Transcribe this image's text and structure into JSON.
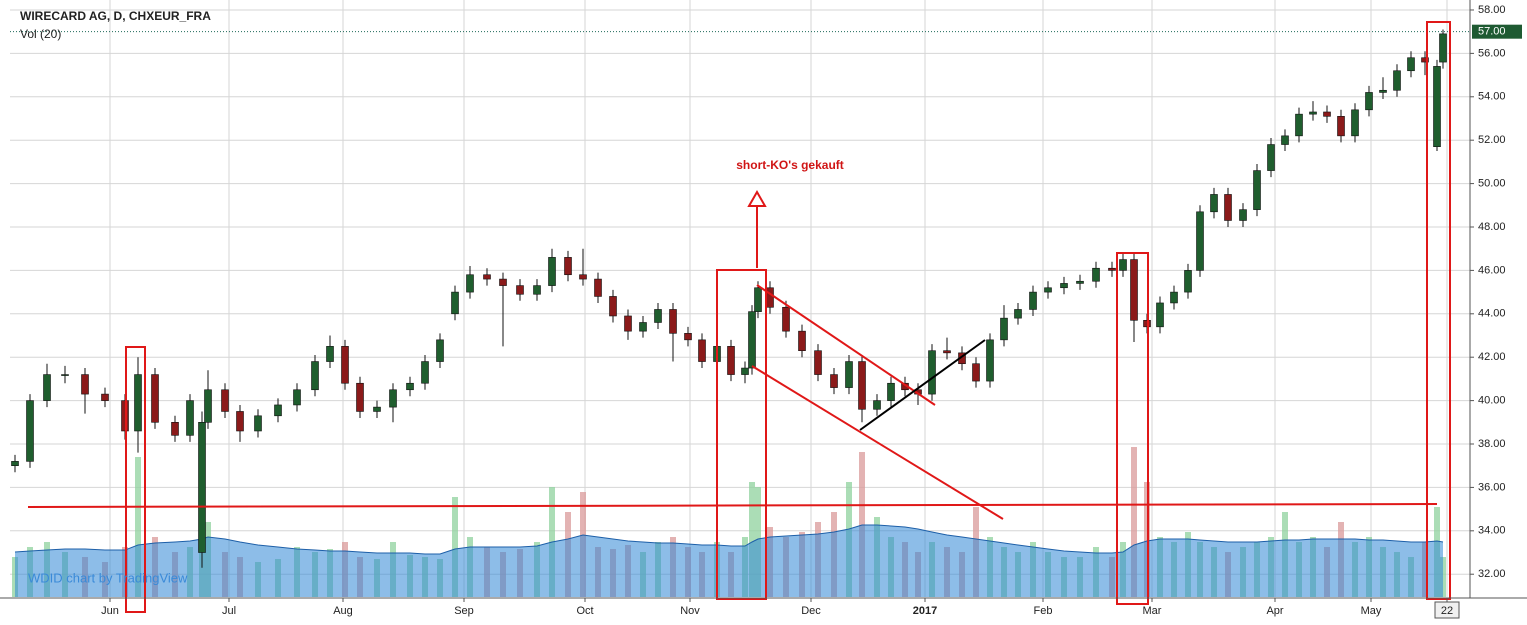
{
  "chart_data": {
    "type": "candlestick",
    "title": "WIRECARD AG, D, CHXEUR_FRA",
    "subtitle": "Vol (20)",
    "watermark": "WDID chart by TradingView",
    "annotation": "short-KO's gekauft",
    "up_color": "#1f5e2e",
    "down_color": "#8b1a1a",
    "volume_up_color": "#8fd19e",
    "volume_down_color": "#d99a9a",
    "vol_ma_color": "#2f86d6",
    "grid": true,
    "x": [
      0.5,
      2,
      3.7,
      5.5,
      7.5,
      9.5,
      11.5,
      12.8,
      14.5,
      16.5,
      18,
      19.2,
      19.8,
      21.5,
      23,
      24.8,
      26.8,
      28.7,
      30.5,
      32,
      33.5,
      35,
      36.7,
      38.3,
      40,
      41.5,
      43,
      44.5,
      46,
      47.7,
      49.3,
      51,
      52.7,
      54.2,
      55.8,
      57.3,
      58.8,
      60.3,
      61.8,
      63.3,
      64.8,
      66.3,
      67.8,
      69.2,
      70.7,
      72.1,
      73.5,
      74.2,
      74.8,
      76,
      77.6,
      79.2,
      80.8,
      82.4,
      83.9,
      85.2,
      86.7,
      88.1,
      89.5,
      90.8,
      92.2,
      93.7,
      95.2,
      96.6,
      98,
      99.4,
      100.8,
      102.3,
      103.8,
      105.4,
      107,
      108.6,
      110.2,
      111.3,
      112.4,
      113.7,
      115,
      116.4,
      117.8,
      119,
      120.4,
      121.8,
      123.3,
      124.7,
      126.1,
      127.5,
      128.9,
      130.3,
      131.7,
      133.1,
      134.5,
      135.9,
      137.3,
      138.7,
      140.1,
      141.5,
      142.7,
      143.3
    ],
    "open": [
      37.0,
      37.2,
      40.0,
      41.2,
      41.2,
      40.3,
      40.0,
      38.6,
      41.2,
      39.0,
      38.4,
      33.0,
      39.0,
      40.5,
      39.5,
      38.6,
      39.3,
      39.8,
      40.5,
      41.8,
      42.5,
      40.8,
      39.5,
      39.7,
      40.5,
      40.8,
      41.8,
      44.0,
      45.0,
      45.8,
      45.6,
      45.3,
      44.9,
      45.3,
      46.6,
      45.8,
      45.6,
      44.8,
      43.9,
      43.2,
      43.6,
      44.2,
      43.1,
      42.8,
      41.8,
      42.5,
      41.2,
      41.5,
      44.1,
      45.2,
      44.3,
      43.2,
      42.3,
      41.2,
      40.6,
      41.8,
      39.6,
      40.0,
      40.8,
      40.5,
      40.3,
      42.3,
      42.2,
      41.7,
      40.9,
      42.8,
      43.8,
      44.2,
      45.0,
      45.2,
      45.4,
      45.5,
      46.1,
      46.0,
      46.5,
      43.7,
      43.4,
      44.5,
      45.0,
      46.0,
      48.7,
      49.5,
      48.3,
      48.8,
      50.6,
      51.8,
      52.2,
      53.2,
      53.3,
      53.1,
      52.2,
      53.4,
      54.2,
      54.3,
      55.2,
      55.8,
      51.7,
      55.6
    ],
    "high": [
      37.5,
      40.3,
      41.7,
      41.6,
      41.5,
      40.6,
      40.3,
      42.0,
      41.5,
      39.3,
      40.3,
      39.5,
      41.4,
      40.8,
      39.8,
      39.6,
      40.1,
      40.8,
      42.1,
      43.0,
      42.8,
      41.1,
      40.0,
      40.8,
      41.1,
      42.1,
      43.1,
      45.3,
      46.2,
      46.1,
      45.9,
      45.6,
      45.6,
      47.0,
      46.9,
      47.0,
      45.9,
      45.1,
      44.2,
      43.9,
      44.5,
      44.5,
      43.4,
      43.1,
      42.8,
      42.8,
      41.8,
      44.4,
      45.5,
      45.5,
      44.6,
      43.5,
      42.6,
      41.5,
      42.1,
      42.1,
      40.3,
      41.1,
      41.1,
      40.8,
      42.6,
      42.9,
      42.5,
      42.0,
      43.1,
      44.4,
      44.5,
      45.3,
      45.5,
      45.7,
      45.8,
      46.4,
      46.4,
      46.8,
      46.8,
      44.0,
      44.8,
      45.3,
      46.3,
      49.0,
      49.8,
      49.8,
      49.1,
      50.9,
      52.1,
      52.5,
      53.5,
      53.8,
      53.6,
      53.4,
      53.7,
      54.5,
      54.9,
      55.5,
      56.1,
      56.1,
      55.7,
      57.1
    ],
    "low": [
      36.7,
      36.9,
      39.7,
      40.8,
      39.4,
      39.7,
      38.2,
      37.6,
      38.7,
      38.1,
      38.1,
      32.3,
      38.7,
      39.2,
      38.1,
      38.3,
      39.0,
      39.5,
      40.2,
      41.5,
      40.5,
      39.2,
      39.2,
      39.0,
      40.2,
      40.5,
      41.5,
      43.7,
      44.7,
      45.3,
      42.5,
      44.6,
      44.6,
      45.0,
      45.5,
      45.3,
      44.5,
      43.6,
      42.8,
      42.9,
      43.3,
      41.8,
      42.5,
      41.5,
      41.5,
      40.9,
      40.8,
      41.2,
      43.8,
      44.0,
      42.9,
      42.0,
      40.9,
      40.3,
      40.3,
      39.0,
      39.3,
      39.7,
      40.2,
      39.8,
      40.0,
      41.9,
      41.4,
      40.6,
      40.6,
      42.5,
      43.5,
      43.9,
      44.7,
      44.9,
      45.1,
      45.2,
      45.7,
      45.7,
      42.7,
      43.1,
      43.1,
      44.2,
      44.7,
      45.7,
      48.4,
      48.0,
      48.0,
      48.5,
      50.3,
      51.5,
      51.9,
      52.9,
      52.8,
      51.9,
      51.9,
      53.1,
      53.9,
      54.0,
      54.9,
      55.0,
      51.5,
      55.3
    ],
    "close": [
      37.2,
      40.0,
      41.2,
      41.2,
      40.3,
      40.0,
      38.6,
      41.2,
      39.0,
      38.4,
      40.0,
      39.0,
      40.5,
      39.5,
      38.6,
      39.3,
      39.8,
      40.5,
      41.8,
      42.5,
      40.8,
      39.5,
      39.7,
      40.5,
      40.8,
      41.8,
      42.8,
      45.0,
      45.8,
      45.6,
      45.3,
      44.9,
      45.3,
      46.6,
      45.8,
      45.6,
      44.8,
      43.9,
      43.2,
      43.6,
      44.2,
      43.1,
      42.8,
      41.8,
      42.5,
      41.2,
      41.5,
      44.1,
      45.2,
      44.3,
      43.2,
      42.3,
      41.2,
      40.6,
      41.8,
      39.6,
      40.0,
      40.8,
      40.5,
      40.3,
      42.3,
      42.2,
      41.7,
      40.9,
      42.8,
      43.8,
      44.2,
      45.0,
      45.2,
      45.4,
      45.5,
      46.1,
      46.0,
      46.5,
      43.7,
      43.4,
      44.5,
      45.0,
      46.0,
      48.7,
      49.5,
      48.3,
      48.8,
      50.6,
      51.8,
      52.2,
      53.2,
      53.3,
      53.1,
      52.2,
      53.4,
      54.2,
      54.3,
      55.2,
      55.8,
      55.6,
      55.4,
      56.9
    ],
    "volume": [
      40,
      50,
      55,
      45,
      40,
      35,
      50,
      140,
      60,
      45,
      50,
      95,
      75,
      45,
      40,
      35,
      38,
      50,
      45,
      48,
      55,
      40,
      38,
      55,
      42,
      40,
      38,
      100,
      60,
      50,
      45,
      48,
      55,
      110,
      85,
      105,
      50,
      48,
      52,
      45,
      55,
      60,
      50,
      45,
      55,
      45,
      60,
      115,
      110,
      70,
      60,
      65,
      75,
      85,
      115,
      145,
      80,
      60,
      55,
      45,
      55,
      50,
      45,
      90,
      60,
      50,
      45,
      55,
      45,
      40,
      40,
      50,
      40,
      55,
      150,
      115,
      60,
      55,
      65,
      55,
      50,
      45,
      50,
      55,
      60,
      85,
      55,
      60,
      50,
      75,
      55,
      60,
      50,
      45,
      40,
      55,
      90,
      40
    ],
    "vol_ma": [
      45,
      46,
      47,
      48,
      48,
      47,
      47,
      52,
      54,
      55,
      56,
      58,
      60,
      58,
      55,
      52,
      50,
      48,
      47,
      46,
      46,
      45,
      44,
      44,
      44,
      43,
      43,
      48,
      50,
      50,
      50,
      50,
      51,
      55,
      58,
      62,
      60,
      58,
      56,
      55,
      54,
      54,
      53,
      52,
      52,
      51,
      51,
      55,
      58,
      60,
      61,
      62,
      63,
      65,
      68,
      72,
      72,
      71,
      70,
      68,
      65,
      62,
      60,
      58,
      56,
      54,
      52,
      50,
      48,
      46,
      45,
      44,
      44,
      45,
      52,
      56,
      58,
      58,
      58,
      57,
      56,
      55,
      55,
      55,
      56,
      57,
      57,
      58,
      58,
      58,
      58,
      57,
      57,
      56,
      55,
      55,
      56,
      55
    ],
    "xlim": [
      0,
      146
    ],
    "xticks": [
      {
        "value": 10,
        "label": "Jun"
      },
      {
        "value": 21.9,
        "label": "Jul"
      },
      {
        "value": 33.3,
        "label": "Aug"
      },
      {
        "value": 45.4,
        "label": "Sep"
      },
      {
        "value": 57.5,
        "label": "Oct"
      },
      {
        "value": 68,
        "label": "Nov"
      },
      {
        "value": 80.1,
        "label": "Dec"
      },
      {
        "value": 91.5,
        "label": "2017"
      },
      {
        "value": 103.3,
        "label": "Feb"
      },
      {
        "value": 114.2,
        "label": "Mar"
      },
      {
        "value": 126.5,
        "label": "Apr"
      },
      {
        "value": 136.1,
        "label": "May"
      },
      {
        "value": 143.7,
        "label": "22"
      }
    ],
    "ylim": [
      30.95,
      58.46
    ],
    "yticks": [
      {
        "value": 32,
        "label": "32.00"
      },
      {
        "value": 34,
        "label": "34.00"
      },
      {
        "value": 36,
        "label": "36.00"
      },
      {
        "value": 38,
        "label": "38.00"
      },
      {
        "value": 40,
        "label": "40.00"
      },
      {
        "value": 42,
        "label": "42.00"
      },
      {
        "value": 44,
        "label": "44.00"
      },
      {
        "value": 46,
        "label": "46.00"
      },
      {
        "value": 48,
        "label": "48.00"
      },
      {
        "value": 50,
        "label": "50.00"
      },
      {
        "value": 52,
        "label": "52.00"
      },
      {
        "value": 54,
        "label": "54.00"
      },
      {
        "value": 56,
        "label": "56.00"
      },
      {
        "value": 58,
        "label": "58.00"
      }
    ],
    "last_price": {
      "value": 57,
      "label": "57.00"
    }
  }
}
